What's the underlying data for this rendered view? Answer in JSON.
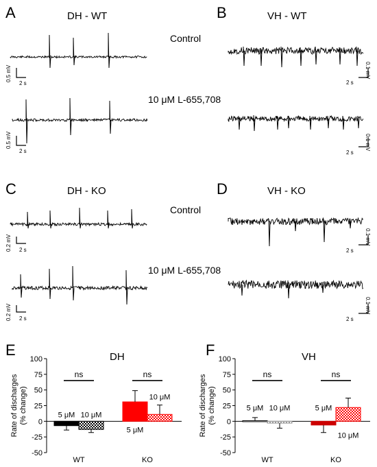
{
  "panels": {
    "A": {
      "letter": "A",
      "title": "DH - WT"
    },
    "B": {
      "letter": "B",
      "title": "VH - WT"
    },
    "C": {
      "letter": "C",
      "title": "DH - KO"
    },
    "D": {
      "letter": "D",
      "title": "VH - KO"
    },
    "E": {
      "letter": "E",
      "title": "DH"
    },
    "F": {
      "letter": "F",
      "title": "VH"
    }
  },
  "conditions": {
    "control": "Control",
    "drug": "10 μM L-655,708"
  },
  "scalebars": {
    "mv_05": "0.5 mV",
    "mv_02": "0.2 mV",
    "mv_01": "0.1 mV",
    "time": "2 s"
  },
  "colors": {
    "wt_5": "#000000",
    "wt_10": "#000000",
    "ko_5": "#ff0000",
    "ko_10": "#ff0000",
    "trace": "#000000"
  },
  "chart_data": [
    {
      "type": "bar",
      "title": "DH",
      "ylabel": "Rate of discharges\n(% change)",
      "ylabel_lines": [
        "Rate of discharges",
        "(% change)"
      ],
      "ylim": [
        -50,
        100
      ],
      "yticks": [
        -50,
        -25,
        0,
        25,
        50,
        75,
        100
      ],
      "groups": [
        "WT",
        "KO"
      ],
      "series": [
        {
          "name": "5 μM",
          "values": [
            -7,
            31
          ],
          "errors": [
            7,
            18
          ],
          "fills": [
            "#000000",
            "#ff0000"
          ],
          "pattern": "solid"
        },
        {
          "name": "10 μM",
          "values": [
            -13,
            11
          ],
          "errors": [
            5,
            15
          ],
          "fills": [
            "#000000",
            "#ff0000"
          ],
          "pattern": "checker"
        }
      ],
      "annotations": [
        "ns",
        "ns"
      ],
      "bar_labels": [
        [
          "5 μM",
          "10 μM"
        ],
        [
          "5 μM",
          "10 μM"
        ]
      ]
    },
    {
      "type": "bar",
      "title": "VH",
      "ylabel": "Rate of discharges\n(% change)",
      "ylabel_lines": [
        "Rate of discharges",
        "(% change)"
      ],
      "ylim": [
        -50,
        100
      ],
      "yticks": [
        -50,
        -25,
        0,
        25,
        50,
        75,
        100
      ],
      "groups": [
        "WT",
        "KO"
      ],
      "series": [
        {
          "name": "5 μM",
          "values": [
            1,
            -6
          ],
          "errors": [
            5,
            12
          ],
          "fills": [
            "#ffffff",
            "#cc0000"
          ],
          "pattern": "solid"
        },
        {
          "name": "10 μM",
          "values": [
            -3,
            22
          ],
          "errors": [
            8,
            15
          ],
          "fills": [
            "#999999",
            "#ff0000"
          ],
          "pattern": "checker"
        }
      ],
      "annotations": [
        "ns",
        "ns"
      ],
      "bar_labels": [
        [
          "5 μM",
          "10 μM"
        ],
        [
          "5 μM",
          "10 μM"
        ]
      ]
    }
  ]
}
